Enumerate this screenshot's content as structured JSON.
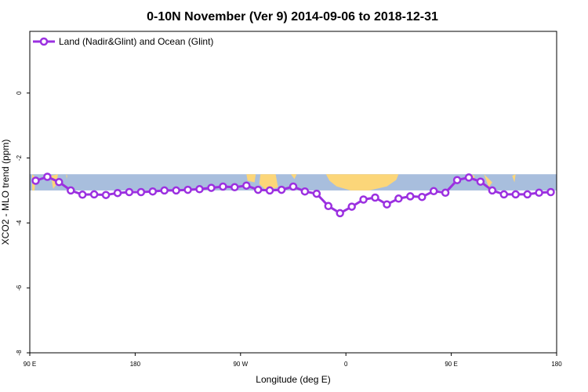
{
  "chart_data": {
    "type": "line",
    "title": "0-10N November (Ver 9)   2014-09-06 to 2018-12-31",
    "xlabel": "Longitude (deg E)",
    "ylabel": "XCO2 - MLO trend (ppm)",
    "xlim": [
      90,
      540
    ],
    "ylim": [
      -8,
      1.9
    ],
    "x_ticks": [
      {
        "value": 90,
        "label": "90 E"
      },
      {
        "value": 180,
        "label": "180"
      },
      {
        "value": 270,
        "label": "90 W"
      },
      {
        "value": 360,
        "label": "0"
      },
      {
        "value": 450,
        "label": "90 E"
      },
      {
        "value": 540,
        "label": "180"
      }
    ],
    "y_ticks": [
      {
        "value": 0,
        "label": "0"
      },
      {
        "value": -2,
        "label": "-2"
      },
      {
        "value": -4,
        "label": "-4"
      },
      {
        "value": -6,
        "label": "-6"
      },
      {
        "value": -8,
        "label": "-8"
      }
    ],
    "legend_position": "top-left",
    "grid": false,
    "background_map": {
      "lat_range": "0-10N",
      "y_top": -2.5,
      "y_bottom": -3.0,
      "ocean_color": "#a8bedd",
      "land_color": "#fcd679"
    },
    "series": [
      {
        "name": "Land (Nadir&Glint) and Ocean (Glint)",
        "color": "#9b30e0",
        "x": [
          95,
          105,
          115,
          125,
          135,
          145,
          155,
          165,
          175,
          185,
          195,
          205,
          215,
          225,
          235,
          245,
          255,
          265,
          275,
          285,
          295,
          305,
          315,
          325,
          335,
          345,
          355,
          365,
          375,
          385,
          395,
          405,
          415,
          425,
          435,
          445,
          455,
          465,
          475,
          485,
          495,
          505,
          515,
          525,
          535
        ],
        "y": [
          -2.7,
          -2.58,
          -2.74,
          -3.0,
          -3.13,
          -3.12,
          -3.14,
          -3.08,
          -3.05,
          -3.05,
          -3.03,
          -3.0,
          -3.0,
          -2.98,
          -2.96,
          -2.92,
          -2.88,
          -2.9,
          -2.85,
          -2.98,
          -3.0,
          -2.98,
          -2.88,
          -3.03,
          -3.1,
          -3.48,
          -3.7,
          -3.5,
          -3.28,
          -3.22,
          -3.43,
          -3.25,
          -3.18,
          -3.2,
          -3.02,
          -3.07,
          -2.68,
          -2.6,
          -2.73,
          -3.0,
          -3.12,
          -3.12,
          -3.12,
          -3.07,
          -3.05
        ]
      }
    ]
  }
}
